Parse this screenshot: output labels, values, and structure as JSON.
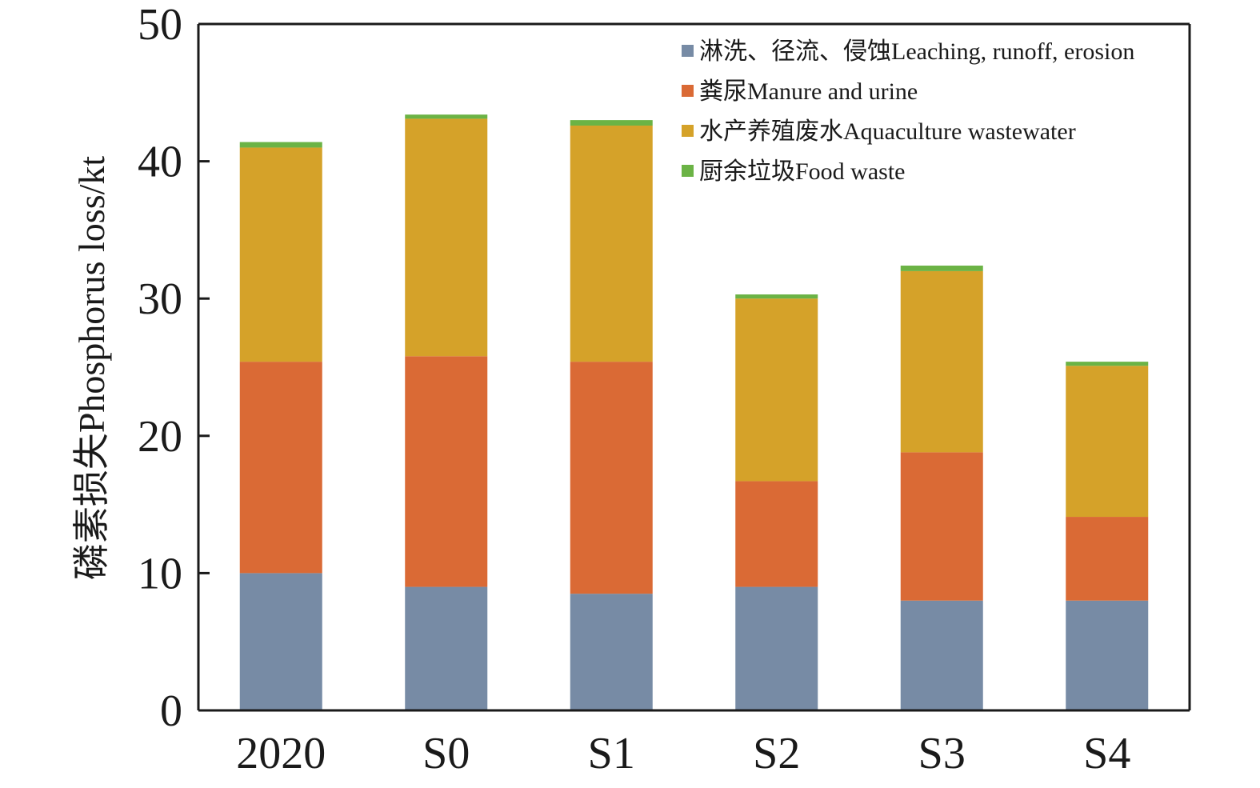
{
  "chart_data": {
    "type": "bar",
    "stacked": true,
    "title": "",
    "xlabel": "",
    "ylabel": "磷素损失Phosphorus loss/kt",
    "ylim": [
      0,
      50
    ],
    "yticks": [
      0,
      10,
      20,
      30,
      40,
      50
    ],
    "grid": false,
    "legend_position": "top-right",
    "categories": [
      "2020",
      "S0",
      "S1",
      "S2",
      "S3",
      "S4"
    ],
    "series": [
      {
        "name": "淋洗、径流、侵蚀Leaching, runoff, erosion",
        "color": "#778BA5",
        "values": [
          10.0,
          9.0,
          8.5,
          9.0,
          8.0,
          8.0
        ]
      },
      {
        "name": "粪尿Manure and urine",
        "color": "#DA6A35",
        "values": [
          15.4,
          16.8,
          16.9,
          7.7,
          10.8,
          6.1
        ]
      },
      {
        "name": "水产养殖废水Aquaculture wastewater",
        "color": "#D5A229",
        "values": [
          15.6,
          17.3,
          17.2,
          13.3,
          13.2,
          11.0
        ]
      },
      {
        "name": "厨余垃圾Food waste",
        "color": "#6BB345",
        "values": [
          0.4,
          0.3,
          0.4,
          0.3,
          0.4,
          0.3
        ]
      }
    ]
  }
}
